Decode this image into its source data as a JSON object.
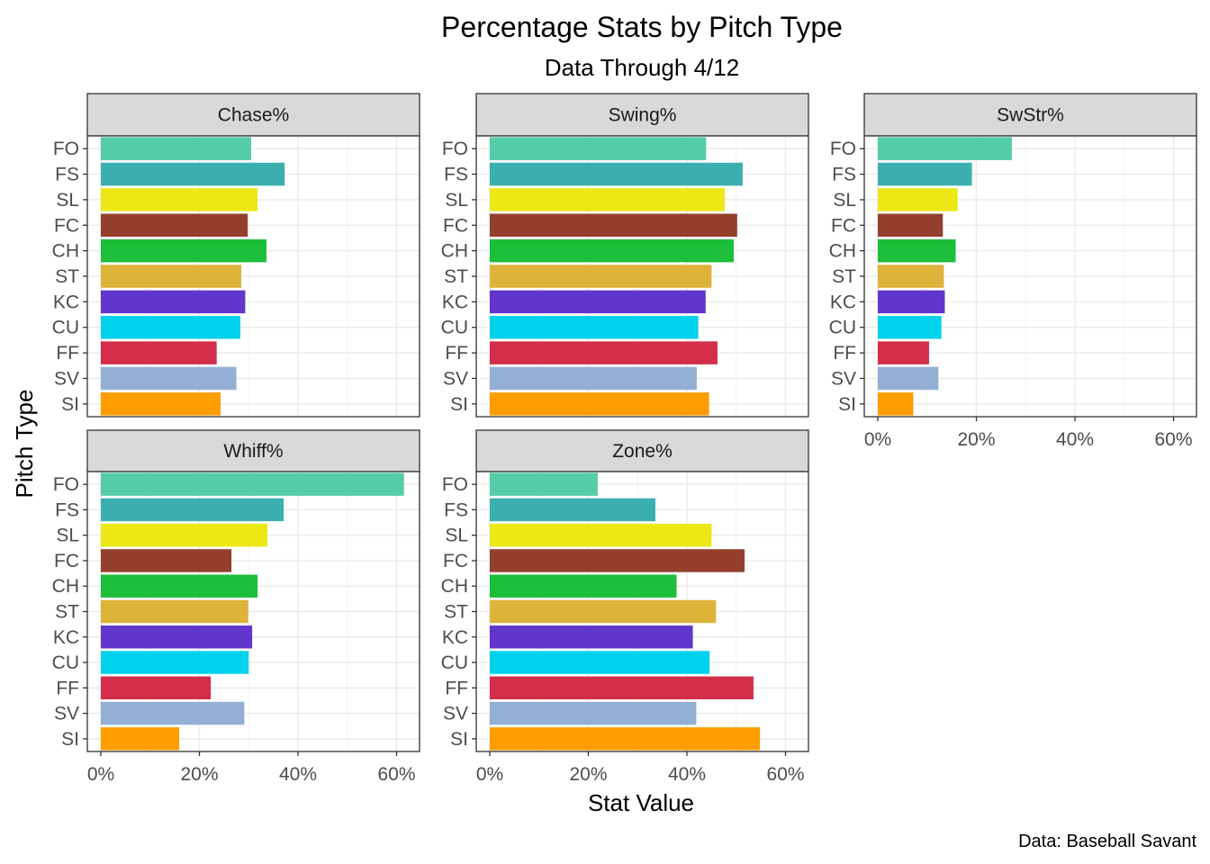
{
  "chart_data": {
    "type": "bar",
    "title": "Percentage Stats by Pitch Type",
    "subtitle": "Data Through 4/12",
    "xlabel": "Stat Value",
    "ylabel": "Pitch Type",
    "caption": "Data: Baseball Savant",
    "xlim": [
      0,
      64
    ],
    "x_ticks": [
      0,
      20,
      40,
      60
    ],
    "x_tick_labels": [
      "0%",
      "20%",
      "40%",
      "60%"
    ],
    "grid": true,
    "categories": [
      "FO",
      "FS",
      "SL",
      "FC",
      "CH",
      "ST",
      "KC",
      "CU",
      "FF",
      "SV",
      "SI"
    ],
    "category_colors": {
      "FO": "#55CCAA",
      "FS": "#3BAFB0",
      "SL": "#EEE716",
      "FC": "#933F2C",
      "CH": "#1DBE3A",
      "ST": "#DDB33A",
      "KC": "#6236CD",
      "CU": "#00D1ED",
      "FF": "#D22D49",
      "SV": "#93AFD4",
      "SI": "#FE9D00"
    },
    "panels": [
      {
        "name": "Chase%",
        "values": {
          "FO": 30.5,
          "FS": 37.3,
          "SL": 31.8,
          "FC": 29.8,
          "CH": 33.6,
          "ST": 28.5,
          "KC": 29.3,
          "CU": 28.3,
          "FF": 23.5,
          "SV": 27.5,
          "SI": 24.3
        }
      },
      {
        "name": "Swing%",
        "values": {
          "FO": 43.9,
          "FS": 51.3,
          "SL": 47.7,
          "FC": 50.2,
          "CH": 49.5,
          "ST": 45.0,
          "KC": 43.8,
          "CU": 42.3,
          "FF": 46.2,
          "SV": 42.0,
          "SI": 44.5
        }
      },
      {
        "name": "SwStr%",
        "values": {
          "FO": 27.2,
          "FS": 19.1,
          "SL": 16.2,
          "FC": 13.2,
          "CH": 15.8,
          "ST": 13.4,
          "KC": 13.6,
          "CU": 12.9,
          "FF": 10.4,
          "SV": 12.3,
          "SI": 7.2
        }
      },
      {
        "name": "Whiff%",
        "values": {
          "FO": 61.5,
          "FS": 37.1,
          "SL": 33.8,
          "FC": 26.5,
          "CH": 31.8,
          "ST": 29.9,
          "KC": 30.7,
          "CU": 30.0,
          "FF": 22.3,
          "SV": 29.1,
          "SI": 15.9
        }
      },
      {
        "name": "Zone%",
        "values": {
          "FO": 21.9,
          "FS": 33.6,
          "SL": 45.0,
          "FC": 51.7,
          "CH": 37.9,
          "ST": 45.9,
          "KC": 41.2,
          "CU": 44.6,
          "FF": 53.5,
          "SV": 41.9,
          "SI": 54.8
        }
      }
    ]
  }
}
